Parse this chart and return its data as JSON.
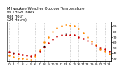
{
  "title": "Milwaukee Weather Outdoor Temperature\nvs THSW Index\nper Hour\n(24 Hours)",
  "hours": [
    0,
    1,
    2,
    3,
    4,
    5,
    6,
    7,
    8,
    9,
    10,
    11,
    12,
    13,
    14,
    15,
    16,
    17,
    18,
    19,
    20,
    21,
    22,
    23
  ],
  "temp": [
    42,
    40,
    38,
    37,
    36,
    35,
    37,
    43,
    51,
    59,
    66,
    71,
    73,
    74,
    74,
    73,
    70,
    67,
    63,
    58,
    54,
    50,
    47,
    44
  ],
  "thsw": [
    36,
    33,
    31,
    30,
    29,
    28,
    34,
    46,
    60,
    70,
    80,
    87,
    91,
    93,
    92,
    90,
    85,
    78,
    70,
    62,
    55,
    48,
    43,
    39
  ],
  "temp_color": "#cc0000",
  "thsw_color": "#ff8800",
  "black_color": "#000000",
  "bg_color": "#ffffff",
  "grid_color": "#aaaaaa",
  "ylim": [
    25,
    98
  ],
  "xlim": [
    -0.5,
    23.5
  ],
  "yticks": [
    30,
    40,
    50,
    60,
    70,
    80,
    90
  ],
  "ytick_labels": [
    "30",
    "40",
    "50",
    "60",
    "70",
    "80",
    "90"
  ],
  "xticks": [
    0,
    1,
    2,
    3,
    4,
    5,
    6,
    7,
    8,
    9,
    10,
    11,
    12,
    13,
    14,
    15,
    16,
    17,
    18,
    19,
    20,
    21,
    22,
    23
  ],
  "xtick_labels": [
    "0",
    "1",
    "2",
    "3",
    "4",
    "5",
    "6",
    "7",
    "8",
    "9",
    "10",
    "11",
    "12",
    "13",
    "14",
    "15",
    "16",
    "17",
    "18",
    "19",
    "20",
    "21",
    "22",
    "23"
  ],
  "title_fontsize": 3.8,
  "tick_fontsize": 3.2,
  "marker_size": 1.8,
  "grid_linewidth": 0.4,
  "grid_hours": [
    0,
    2,
    4,
    6,
    8,
    10,
    12,
    14,
    16,
    18,
    20,
    22
  ]
}
